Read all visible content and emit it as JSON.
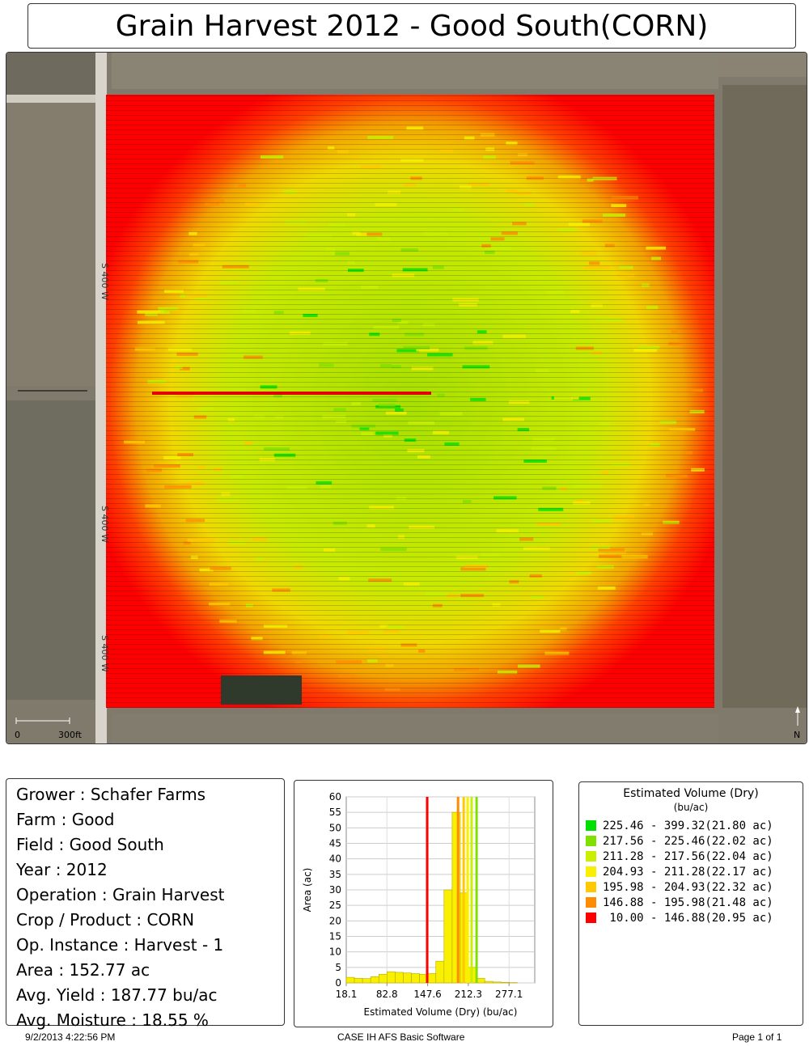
{
  "title": "Grain Harvest 2012 - Good South(CORN)",
  "map": {
    "road_labels": [
      "S 400 W",
      "S 400 W",
      "S 400 W"
    ],
    "scale_labels": [
      "0",
      "300ft"
    ],
    "north_label": "N"
  },
  "info": [
    {
      "label": "Grower : Schafer Farms"
    },
    {
      "label": "Farm  : Good"
    },
    {
      "label": "Field  : Good South"
    },
    {
      "label": "Year : 2012"
    },
    {
      "label": "Operation  : Grain Harvest"
    },
    {
      "label": "Crop / Product : CORN"
    },
    {
      "label": "Op. Instance : Harvest - 1"
    },
    {
      "label": "Area : 152.77 ac"
    },
    {
      "label": "Avg. Yield : 187.77 bu/ac"
    },
    {
      "label": "Avg. Moisture : 18.55 %"
    }
  ],
  "legend": {
    "title": "Estimated Volume (Dry)",
    "unit": "(bu/ac)",
    "items": [
      {
        "text": "225.46 - 399.32(21.80 ac)",
        "color": "#00e000"
      },
      {
        "text": "217.56 - 225.46(22.02 ac)",
        "color": "#80e000"
      },
      {
        "text": "211.28 - 217.56(22.04 ac)",
        "color": "#c8f000"
      },
      {
        "text": "204.93 - 211.28(22.17 ac)",
        "color": "#f8f000"
      },
      {
        "text": "195.98 - 204.93(22.32 ac)",
        "color": "#ffc800"
      },
      {
        "text": "146.88 - 195.98(21.48 ac)",
        "color": "#ff8c00"
      },
      {
        "text": " 10.00 - 146.88(20.95 ac)",
        "color": "#ff0000"
      }
    ]
  },
  "chart_data": {
    "type": "bar",
    "xlabel": "Estimated Volume (Dry) (bu/ac)",
    "ylabel": "Area (ac)",
    "xlim": [
      18.1,
      318
    ],
    "ylim": [
      0,
      60
    ],
    "xticks": [
      18.1,
      82.8,
      147.6,
      212.3,
      277.1
    ],
    "yticks": [
      0,
      5,
      10,
      15,
      20,
      25,
      30,
      35,
      40,
      45,
      50,
      55,
      60
    ],
    "bin_width": 12.96,
    "bins_start": [
      18.1,
      31.06,
      44.02,
      56.98,
      69.94,
      82.9,
      95.86,
      108.82,
      121.78,
      134.74,
      147.7,
      160.66,
      173.62,
      186.58,
      199.54,
      212.5,
      225.46,
      238.42,
      251.38,
      264.34,
      277.3
    ],
    "values": [
      1.8,
      1.5,
      1.4,
      2.0,
      2.8,
      3.6,
      3.4,
      3.2,
      3.0,
      2.8,
      3.0,
      7.0,
      30.0,
      55.0,
      29.0,
      5.0,
      1.5,
      0.5,
      0.3,
      0.2,
      0.1
    ],
    "bar_color": "#f8f000",
    "threshold_lines": [
      {
        "x": 146.88,
        "color": "#ff0000"
      },
      {
        "x": 195.98,
        "color": "#ff8c00"
      },
      {
        "x": 204.93,
        "color": "#ffc800"
      },
      {
        "x": 211.28,
        "color": "#f8f000"
      },
      {
        "x": 217.56,
        "color": "#c8f000"
      },
      {
        "x": 225.46,
        "color": "#80e000"
      }
    ]
  },
  "footer": {
    "left": "9/2/2013 4:22:56 PM",
    "center": "CASE IH AFS Basic Software",
    "right": "Page 1 of 1"
  }
}
